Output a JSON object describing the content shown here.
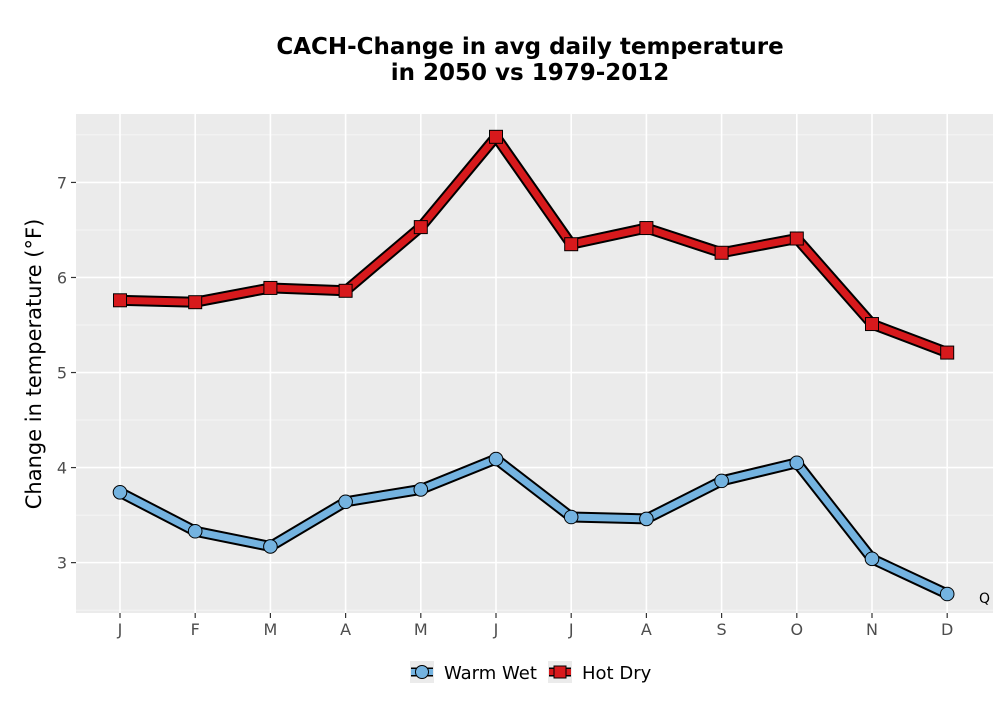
{
  "chart_data": {
    "type": "line",
    "title_lines": [
      "CACH-Change in avg daily temperature",
      "in 2050 vs 1979-2012"
    ],
    "xlabel": "",
    "ylabel": "Change in temperature (°F)",
    "categories": [
      "J",
      "F",
      "M",
      "A",
      "M",
      "J",
      "J",
      "A",
      "S",
      "O",
      "N",
      "D"
    ],
    "y_ticks": [
      3,
      4,
      5,
      6,
      7
    ],
    "ylim": [
      2.47,
      7.72
    ],
    "grid": true,
    "legend_position": "bottom",
    "series": [
      {
        "name": "Warm Wet",
        "color": "#74b3e0",
        "marker": "circle",
        "values": [
          3.74,
          3.33,
          3.17,
          3.64,
          3.77,
          4.09,
          3.48,
          3.46,
          3.86,
          4.05,
          3.04,
          2.67
        ]
      },
      {
        "name": "Hot Dry",
        "color": "#d7191c",
        "marker": "square",
        "values": [
          5.76,
          5.74,
          5.89,
          5.86,
          6.53,
          7.48,
          6.35,
          6.52,
          6.26,
          6.41,
          5.51,
          5.21
        ]
      }
    ],
    "annotation": "Q"
  }
}
